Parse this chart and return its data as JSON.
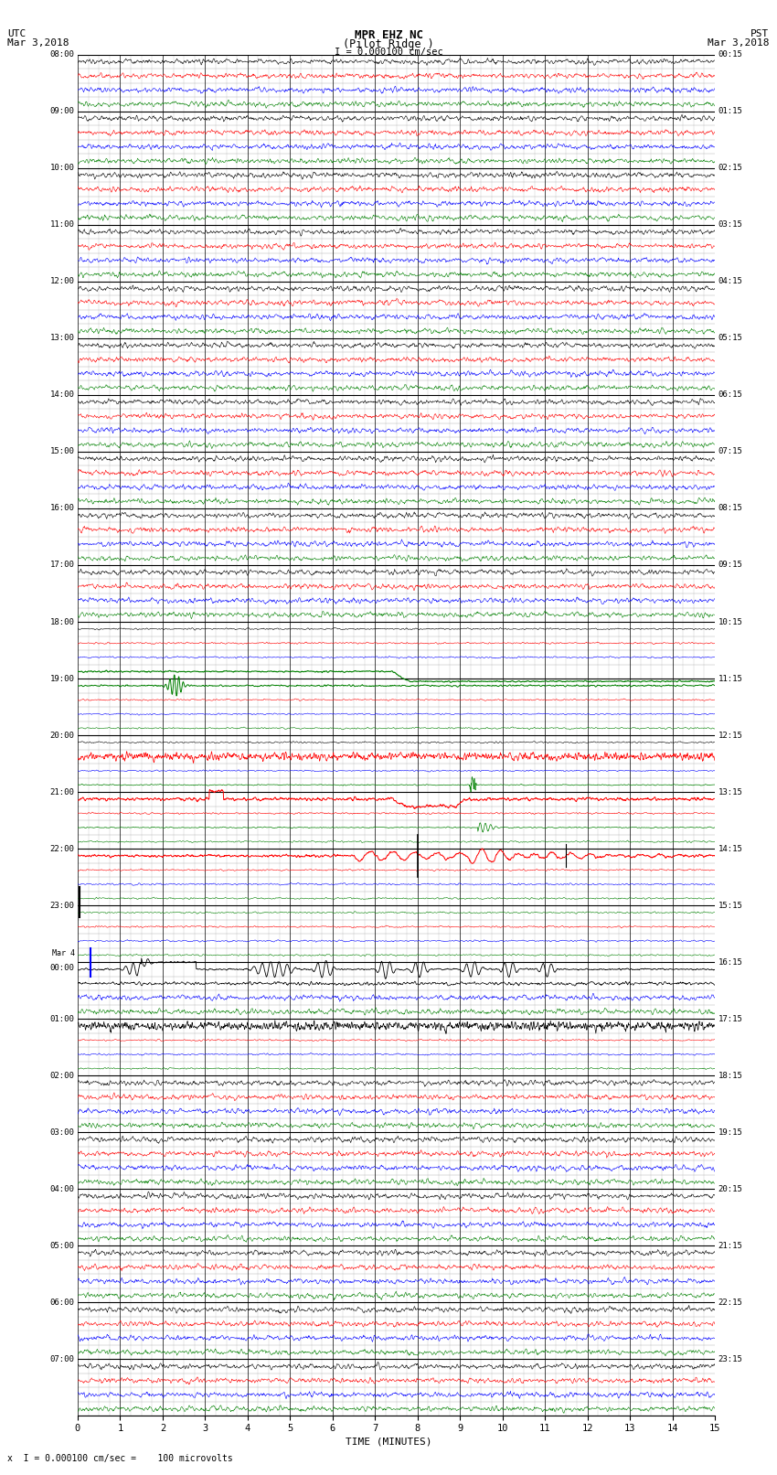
{
  "title_line1": "MPR EHZ NC",
  "title_line2": "(Pilot Ridge )",
  "title_scale": "I = 0.000100 cm/sec",
  "left_header_line1": "UTC",
  "left_header_line2": "Mar 3,2018",
  "right_header_line1": "PST",
  "right_header_line2": "Mar 3,2018",
  "xlabel": "TIME (MINUTES)",
  "footer": "x  I = 0.000100 cm/sec =    100 microvolts",
  "utc_labels": [
    "08:00",
    "09:00",
    "10:00",
    "11:00",
    "12:00",
    "13:00",
    "14:00",
    "15:00",
    "16:00",
    "17:00",
    "18:00",
    "19:00",
    "20:00",
    "21:00",
    "22:00",
    "23:00",
    "Mar 4\n00:00",
    "01:00",
    "02:00",
    "03:00",
    "04:00",
    "05:00",
    "06:00",
    "07:00"
  ],
  "pst_labels": [
    "00:15",
    "01:15",
    "02:15",
    "03:15",
    "04:15",
    "05:15",
    "06:15",
    "07:15",
    "08:15",
    "09:15",
    "10:15",
    "11:15",
    "12:15",
    "13:15",
    "14:15",
    "15:15",
    "16:15",
    "17:15",
    "18:15",
    "19:15",
    "20:15",
    "21:15",
    "22:15",
    "23:15"
  ],
  "num_rows": 24,
  "sub_rows_per_band": 4,
  "bg_color": "#ffffff",
  "major_grid_color": "#000000",
  "minor_grid_color": "#aaaaaa",
  "trace_color_black": "#000000",
  "trace_color_red": "#ff0000",
  "trace_color_blue": "#0000ff",
  "trace_color_green": "#008000"
}
